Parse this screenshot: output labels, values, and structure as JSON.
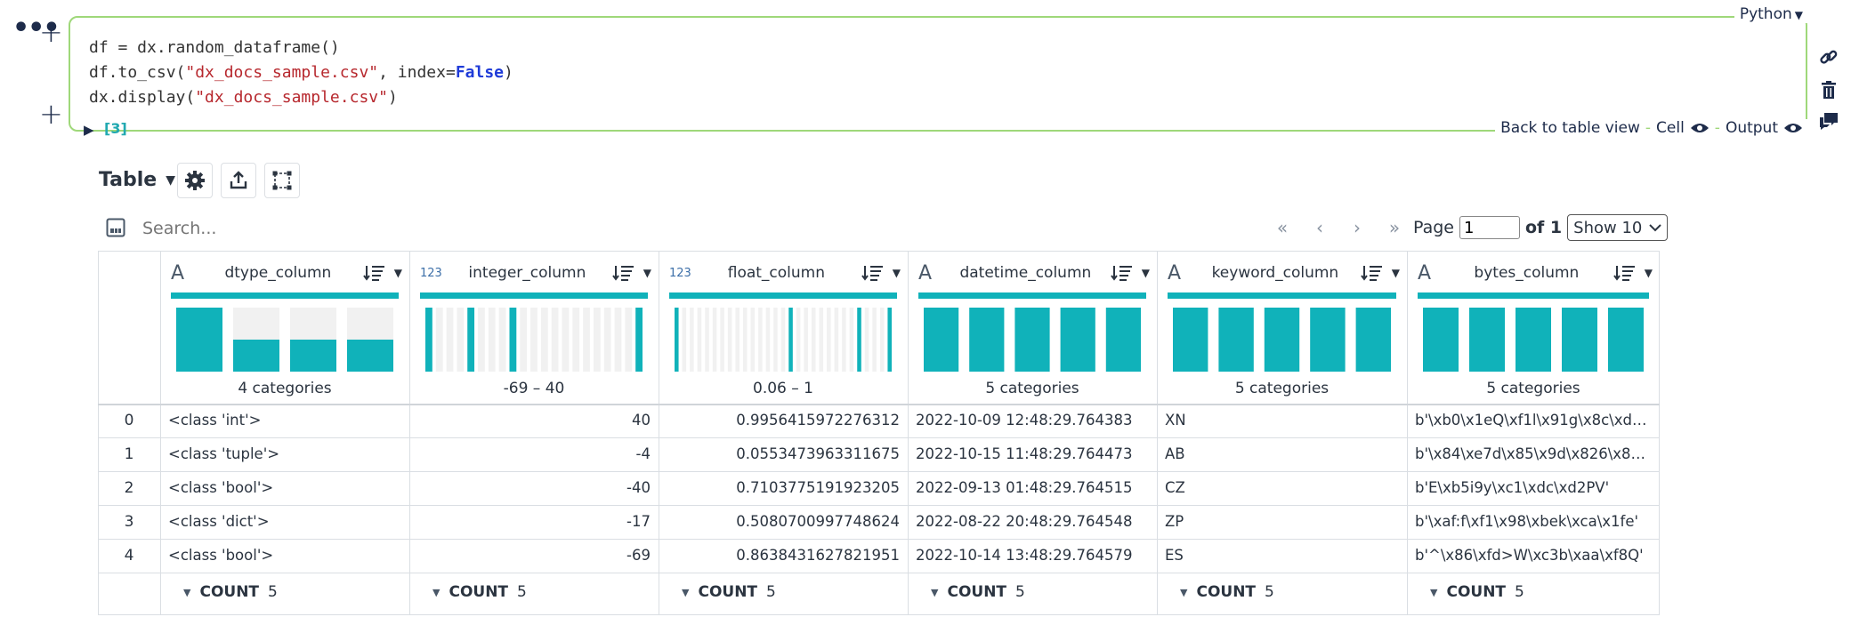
{
  "cell": {
    "language": "Python",
    "code_lines": [
      [
        {
          "t": "df = dx.random_dataframe()",
          "c": "plain"
        }
      ],
      [
        {
          "t": "df.to_csv(",
          "c": "plain"
        },
        {
          "t": "\"dx_docs_sample.csv\"",
          "c": "str"
        },
        {
          "t": ", index=",
          "c": "plain"
        },
        {
          "t": "False",
          "c": "kw"
        },
        {
          "t": ")",
          "c": "plain"
        }
      ],
      [
        {
          "t": "dx.display(",
          "c": "plain"
        },
        {
          "t": "\"dx_docs_sample.csv\"",
          "c": "str"
        },
        {
          "t": ")",
          "c": "plain"
        }
      ]
    ],
    "exec_count": "[3]",
    "back_to_table": "Back to table view",
    "cell_label": "Cell",
    "output_label": "Output",
    "dash": "-"
  },
  "toolbar": {
    "view_label": "Table",
    "icons": [
      "gear-icon",
      "export-icon",
      "select-region-icon"
    ]
  },
  "search": {
    "placeholder": "Search..."
  },
  "pager": {
    "page_label": "Page",
    "page_value": "1",
    "of_label": "of 1",
    "show_label": "Show 10"
  },
  "grid": {
    "columns": [
      {
        "name": "dtype_column",
        "type_icon": "A",
        "kind": "text",
        "summary": "4 categories",
        "hist": [
          1,
          0.5,
          0.5,
          0.5
        ],
        "align": "left"
      },
      {
        "name": "integer_column",
        "type_icon": "123",
        "kind": "num",
        "summary": "-69 – 40",
        "hist": [
          1,
          0,
          0,
          0,
          1,
          0,
          0,
          0,
          1,
          0,
          0,
          0,
          0,
          0,
          0,
          0,
          0,
          0,
          0,
          0,
          1
        ],
        "align": "right"
      },
      {
        "name": "float_column",
        "type_icon": "123",
        "kind": "num",
        "summary": "0.06 – 1",
        "hist": [
          1,
          0,
          0,
          0,
          0,
          0,
          0,
          0,
          0,
          0,
          0,
          0,
          0,
          0,
          0,
          1,
          0,
          0,
          0,
          0,
          0,
          0,
          0,
          0,
          1,
          0,
          0,
          0,
          1
        ],
        "align": "right"
      },
      {
        "name": "datetime_column",
        "type_icon": "A",
        "kind": "text",
        "summary": "5 categories",
        "hist": [
          1,
          1,
          1,
          1,
          1
        ],
        "align": "left"
      },
      {
        "name": "keyword_column",
        "type_icon": "A",
        "kind": "text",
        "summary": "5 categories",
        "hist": [
          1,
          1,
          1,
          1,
          1
        ],
        "align": "left"
      },
      {
        "name": "bytes_column",
        "type_icon": "A",
        "kind": "text",
        "summary": "5 categories",
        "hist": [
          1,
          1,
          1,
          1,
          1
        ],
        "align": "left"
      }
    ],
    "rows": [
      {
        "index": "0",
        "values": [
          "<class 'int'>",
          "40",
          "0.9956415972276312",
          "2022-10-09 12:48:29.764383",
          "XN",
          "b'\\xb0\\x1eQ\\xf1l\\x91g\\x8c\\xd8\\x...'"
        ]
      },
      {
        "index": "1",
        "values": [
          "<class 'tuple'>",
          "-4",
          "0.0553473963311675",
          "2022-10-15 11:48:29.764473",
          "AB",
          "b'\\x84\\xe7d\\x85\\x9d\\x826\\x87..."
        ]
      },
      {
        "index": "2",
        "values": [
          "<class 'bool'>",
          "-40",
          "0.7103775191923205",
          "2022-09-13 01:48:29.764515",
          "CZ",
          "b'E\\xb5i9y\\xc1\\xdc\\xd2PV'"
        ]
      },
      {
        "index": "3",
        "values": [
          "<class 'dict'>",
          "-17",
          "0.5080700997748624",
          "2022-08-22 20:48:29.764548",
          "ZP",
          "b'\\xaf:f\\xf1\\x98\\xbek\\xca\\x1fe'"
        ]
      },
      {
        "index": "4",
        "values": [
          "<class 'bool'>",
          "-69",
          "0.8638431627821951",
          "2022-10-14 13:48:29.764579",
          "ES",
          "b'^\\x86\\xfd>W\\xc3b\\xaa\\xf8Q'"
        ]
      }
    ],
    "footer": {
      "count_label": "COUNT",
      "count_value": "5"
    }
  },
  "colors": {
    "accent_teal": "#10b2ba",
    "cell_border": "#9fd87a",
    "exec_count": "#22a9b1",
    "string": "#b7282e",
    "keyword": "#1f3bd8"
  }
}
